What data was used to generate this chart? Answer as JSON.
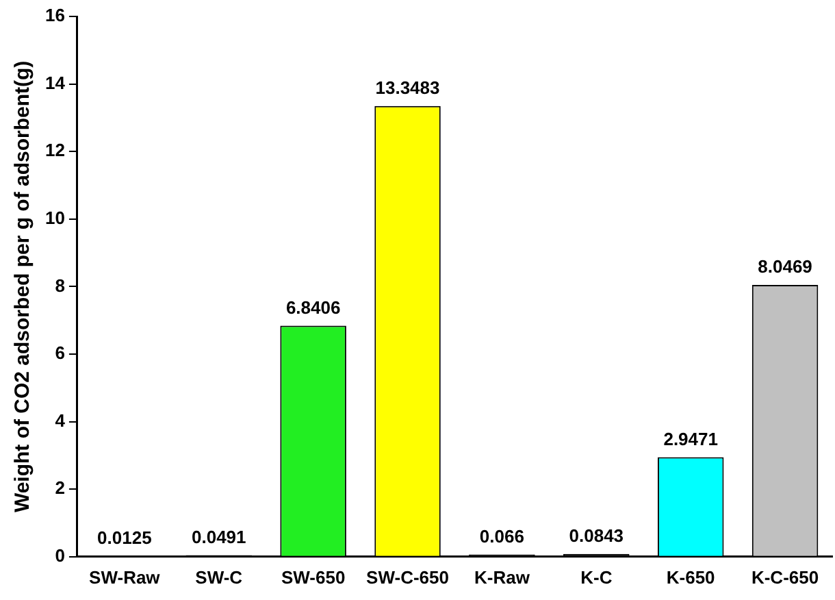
{
  "chart_data": {
    "type": "bar",
    "ylabel": "Weight of CO2 adsorbed per g of adsorbent(g)",
    "categories": [
      "SW-Raw",
      "SW-C",
      "SW-650",
      "SW-C-650",
      "K-Raw",
      "K-C",
      "K-650",
      "K-C-650"
    ],
    "values": [
      0.0125,
      0.0491,
      6.8406,
      13.3483,
      0.066,
      0.0843,
      2.9471,
      8.0469
    ],
    "colors": [
      "#000000",
      "#000000",
      "#22ee22",
      "#ffff00",
      "#000000",
      "#000000",
      "#00ffff",
      "#c0c0c0"
    ],
    "ylim": [
      0,
      16
    ],
    "yticks": [
      0,
      2,
      4,
      6,
      8,
      10,
      12,
      14,
      16
    ],
    "grid": false,
    "legend": false,
    "data_labels": true
  }
}
